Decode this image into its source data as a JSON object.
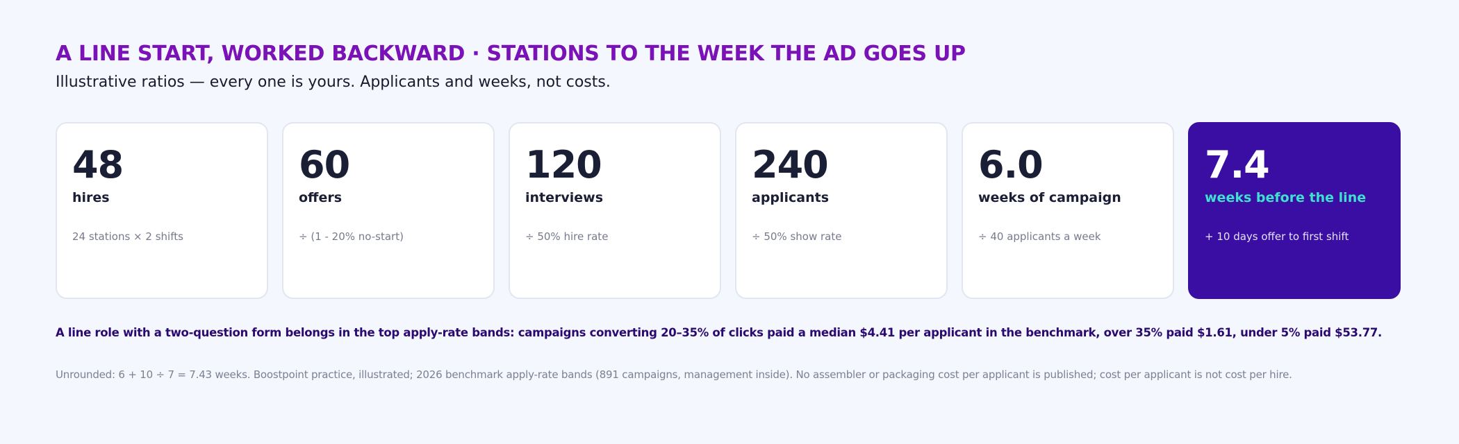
{
  "header": {
    "title": "A LINE START, WORKED BACKWARD · STATIONS TO THE WEEK THE AD GOES UP",
    "subtitle": "Illustrative ratios — every one is yours. Applicants and weeks, not costs."
  },
  "cards": [
    {
      "value": "48",
      "label": "hires",
      "note": "24 stations × 2 shifts"
    },
    {
      "value": "60",
      "label": "offers",
      "note": "÷ (1 - 20% no-start)"
    },
    {
      "value": "120",
      "label": "interviews",
      "note": "÷ 50% hire rate"
    },
    {
      "value": "240",
      "label": "applicants",
      "note": "÷ 50% show rate"
    },
    {
      "value": "6.0",
      "label": "weeks of campaign",
      "note": "÷ 40 applicants a week"
    },
    {
      "value": "7.4",
      "label": "weeks before the line",
      "note": "+ 10 days offer to first shift"
    }
  ],
  "footer": {
    "claim": "A line role with a two-question form belongs in the top apply-rate bands: campaigns converting 20–35% of clicks paid a median $4.41 per applicant in the benchmark, over 35% paid $1.61, under 5% paid $53.77.",
    "source": "Unrounded: 6 + 10 ÷ 7 = 7.43 weeks. Boostpoint practice, illustrated; 2026 benchmark apply-rate bands (891 campaigns, management inside). No assembler or packaging cost per applicant is published; cost per applicant is not cost per hire."
  },
  "colors": {
    "title": "#7a12b8",
    "highlight_card": "#3a0ea3",
    "highlight_label": "#3fe0cf",
    "background": "#f4f7fd"
  }
}
